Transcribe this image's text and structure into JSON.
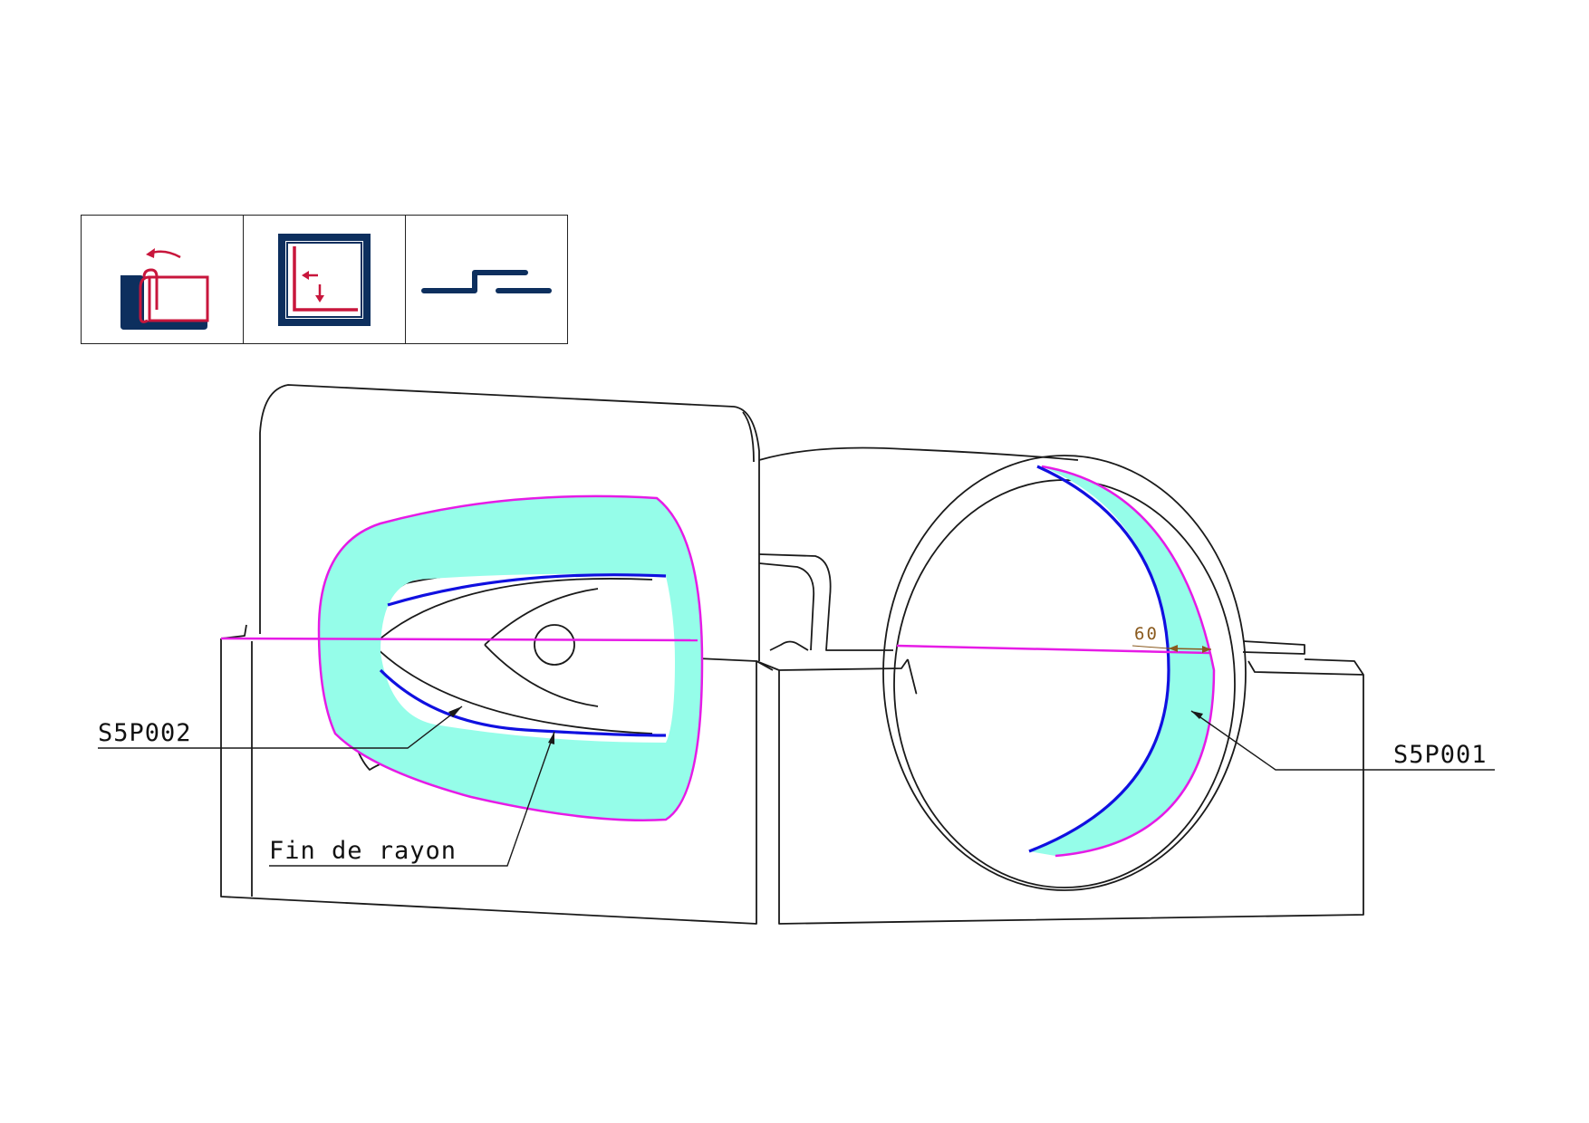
{
  "toolbar": {
    "icons": [
      {
        "name": "hem-fold-icon"
      },
      {
        "name": "flange-corner-icon"
      },
      {
        "name": "joggle-step-icon"
      }
    ],
    "colors": {
      "navy": "#0d2f5e",
      "crimson": "#c8163c"
    }
  },
  "drawing": {
    "labels": {
      "left_surface": "S5P002",
      "right_surface": "S5P001",
      "radius_end": "Fin de rayon"
    },
    "dimension": {
      "value": "60"
    },
    "colors": {
      "surface_fill": "#95fde9",
      "boundary_magenta": "#e61be6",
      "edge_blue": "#1010e0",
      "outline": "#1a1a1a",
      "dimension": "#8a5a1e"
    }
  }
}
